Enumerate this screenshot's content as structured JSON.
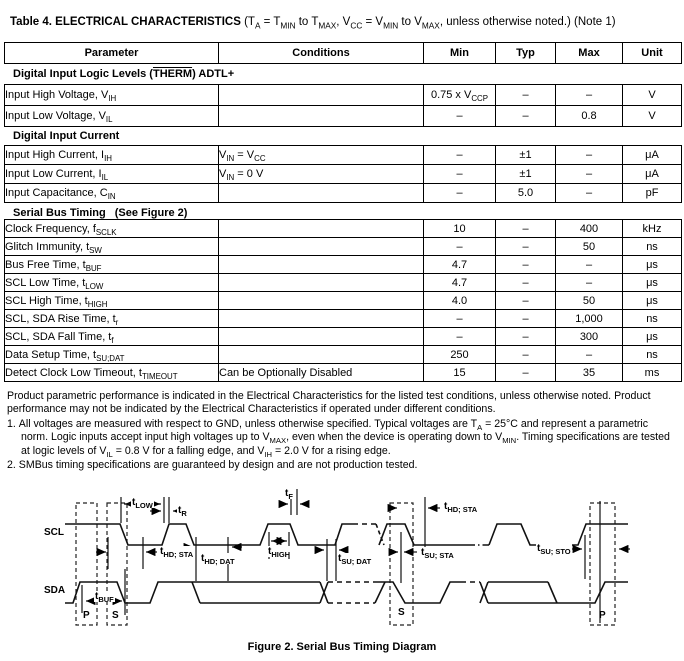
{
  "page": {
    "title_bold": "Table 4. ELECTRICAL CHARACTERISTICS",
    "title_rest": " (T~A~ = T~MIN~ to T~MAX~, V~CC~ = V~MIN~ to V~MAX~, unless otherwise noted.) (Note 1)"
  },
  "table": {
    "headers": [
      "Parameter",
      "Conditions",
      "Min",
      "Typ",
      "Max",
      "Unit"
    ],
    "sections": [
      {
        "title": "Digital Input Logic Levels (^THERM^) ADTL+",
        "rows": [
          {
            "parameter": "Input High Voltage, V~IH~",
            "conditions": "",
            "min": "0.75 x V~CCP~",
            "typ": "–",
            "max": "–",
            "unit": "V"
          },
          {
            "parameter": "Input Low Voltage, V~IL~",
            "conditions": "",
            "min": "–",
            "typ": "–",
            "max": "0.8",
            "unit": "V"
          }
        ]
      },
      {
        "title": "Digital Input Current",
        "rows": [
          {
            "parameter": "Input High Current, I~IH~",
            "conditions": "V~IN~ = V~CC~",
            "min": "–",
            "typ": "±1",
            "max": "–",
            "unit": "μA"
          },
          {
            "parameter": "Input Low Current, I~IL~",
            "conditions": "V~IN~ = 0 V",
            "min": "–",
            "typ": "±1",
            "max": "–",
            "unit": "μA"
          },
          {
            "parameter": "Input Capacitance, C~IN~",
            "conditions": "",
            "min": "–",
            "typ": "5.0",
            "max": "–",
            "unit": "pF"
          }
        ]
      },
      {
        "title": "Serial Bus Timing",
        "title_note": "(See Figure 2)",
        "rows": [
          {
            "parameter": "Clock Frequency, f~SCLK~",
            "conditions": "",
            "min": "10",
            "typ": "–",
            "max": "400",
            "unit": "kHz"
          },
          {
            "parameter": "Glitch Immunity, t~SW~",
            "conditions": "",
            "min": "–",
            "typ": "–",
            "max": "50",
            "unit": "ns"
          },
          {
            "parameter": "Bus Free Time, t~BUF~",
            "conditions": "",
            "min": "4.7",
            "typ": "–",
            "max": "–",
            "unit": "μs"
          },
          {
            "parameter": "SCL Low Time, t~LOW~",
            "conditions": "",
            "min": "4.7",
            "typ": "–",
            "max": "–",
            "unit": "μs"
          },
          {
            "parameter": "SCL High Time, t~HIGH~",
            "conditions": "",
            "min": "4.0",
            "typ": "–",
            "max": "50",
            "unit": "μs"
          },
          {
            "parameter": "SCL, SDA Rise Time, t~r~",
            "conditions": "",
            "min": "–",
            "typ": "–",
            "max": "1,000",
            "unit": "ns"
          },
          {
            "parameter": "SCL, SDA Fall Time, t~f~",
            "conditions": "",
            "min": "–",
            "typ": "–",
            "max": "300",
            "unit": "μs"
          },
          {
            "parameter": "Data Setup Time, t~SU;DAT~",
            "conditions": "",
            "min": "250",
            "typ": "–",
            "max": "–",
            "unit": "ns"
          },
          {
            "parameter": "Detect Clock Low Timeout, t~TIMEOUT~",
            "conditions": "Can be Optionally Disabled",
            "min": "15",
            "typ": "–",
            "max": "35",
            "unit": "ms"
          }
        ]
      }
    ]
  },
  "notes": {
    "intro": "Product parametric performance is indicated in the Electrical Characteristics for the listed test conditions, unless otherwise noted. Product performance may not be indicated by the Electrical Characteristics if operated under different conditions.",
    "items": [
      {
        "num": "1.",
        "text": "All voltages are measured with respect to GND, unless otherwise specified. Typical voltages are T~A~ = 25°C and represent a parametric norm. Logic inputs accept input high voltages up to V~MAX~, even when the device is operating down to V~MIN~. Timing specifications are tested at logic levels of V~IL~ = 0.8 V for a falling edge, and V~IH~ = 2.0 V for a rising edge."
      },
      {
        "num": "2.",
        "text": "SMBus timing specifications are guaranteed by design and are not production tested."
      }
    ]
  },
  "figure": {
    "caption": "Figure 2. Serial Bus Timing Diagram",
    "scl_label": "SCL",
    "sda_label": "SDA",
    "labels": {
      "t_low": "t~LOW~",
      "t_r": "t~R~",
      "t_f": "t~F~",
      "t_hd_sta_1": "t~HD; STA~",
      "t_hd_dat": "t~HD; DAT~",
      "t_high": "t~HIGH~",
      "t_su_dat": "t~SU; DAT~",
      "t_su_sta": "t~SU; STA~",
      "t_hd_sta_2": "t~HD; STA~",
      "t_su_sto": "t~SU; STO~",
      "t_buf": "t~BUF~",
      "p_start": "P",
      "s_start": "S",
      "s_mid": "S",
      "p_end": "P"
    }
  }
}
